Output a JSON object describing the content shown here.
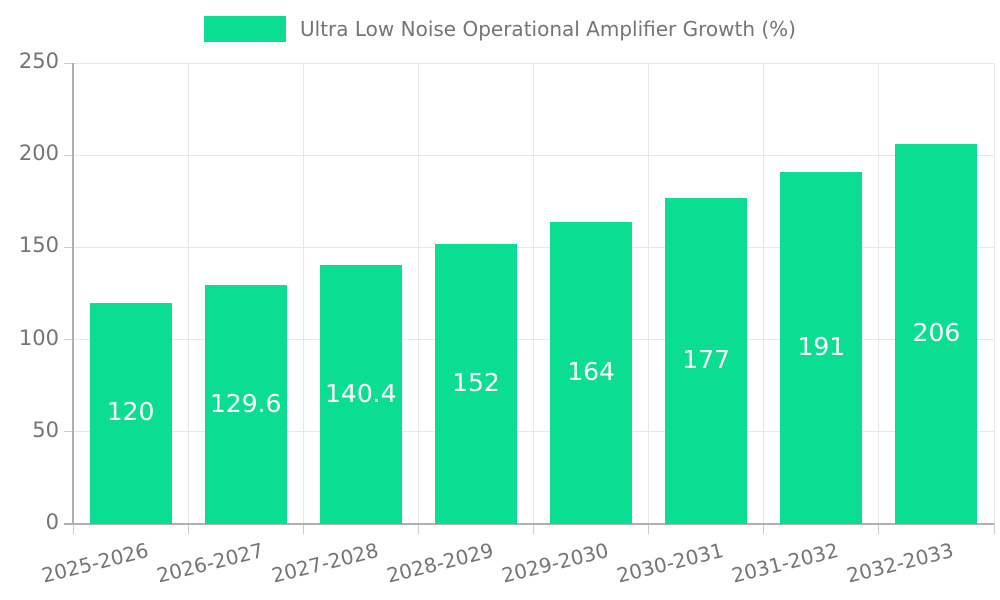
{
  "chart_data": {
    "type": "bar",
    "title": "Ultra Low Noise Operational Amplifier Growth (%)",
    "categories": [
      "2025-2026",
      "2026-2027",
      "2027-2028",
      "2028-2029",
      "2029-2030",
      "2030-2031",
      "2031-2032",
      "2032-2033"
    ],
    "values": [
      120,
      129.6,
      140.4,
      152,
      164,
      177,
      191,
      206
    ],
    "bar_labels": [
      "120",
      "129.6",
      "140.4",
      "152",
      "164",
      "177",
      "191",
      "206"
    ],
    "xlabel": "",
    "ylabel": "",
    "ylim": [
      0,
      250
    ],
    "yticks": [
      0,
      50,
      100,
      150,
      200,
      250
    ],
    "grid": true,
    "legend_position": "top",
    "colors": {
      "bar": "#0bdd92",
      "bar_label_text": "#ffffff",
      "axis_text": "#757575",
      "grid_line": "#e8e8e8",
      "axis_line": "#b0b0b0",
      "tick_mark": "#cccccc",
      "background": "#ffffff"
    }
  }
}
